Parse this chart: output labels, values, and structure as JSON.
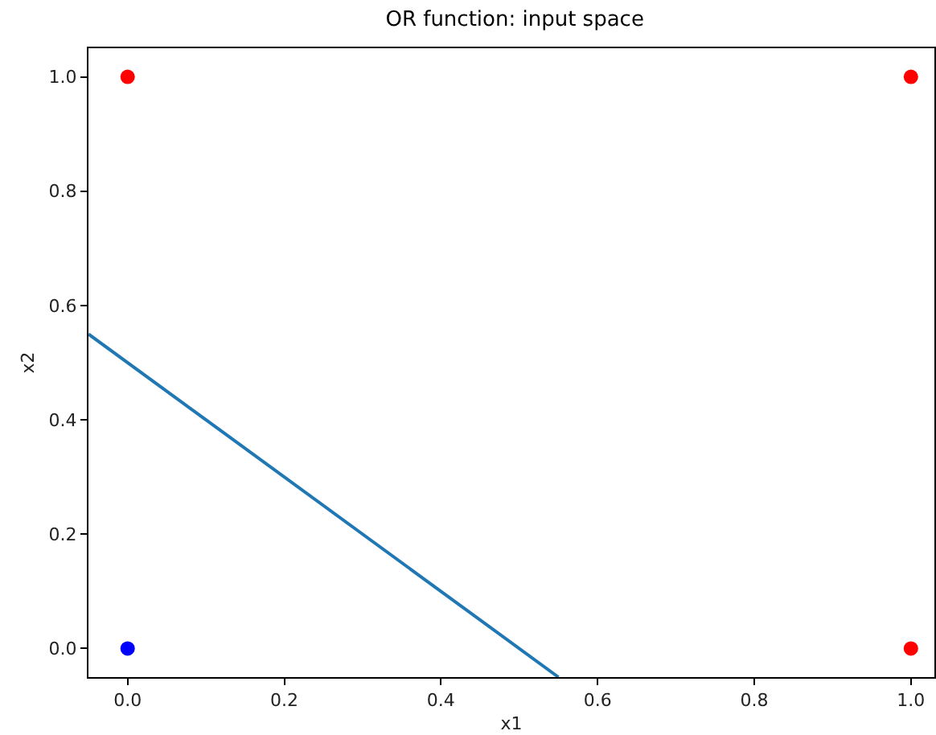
{
  "chart_data": {
    "type": "scatter",
    "title": "OR function: input space",
    "xlabel": "x1",
    "ylabel": "x2",
    "xlim": [
      -0.05,
      1.03
    ],
    "ylim": [
      -0.05,
      1.05
    ],
    "xticks": [
      {
        "value": 0,
        "label": "0.0"
      },
      {
        "value": 0.2,
        "label": "0.2"
      },
      {
        "value": 0.4,
        "label": "0.4"
      },
      {
        "value": 0.6,
        "label": "0.6"
      },
      {
        "value": 0.8,
        "label": "0.8"
      },
      {
        "value": 1,
        "label": "1.0"
      }
    ],
    "yticks": [
      {
        "value": 0,
        "label": "0.0"
      },
      {
        "value": 0.2,
        "label": "0.2"
      },
      {
        "value": 0.4,
        "label": "0.4"
      },
      {
        "value": 0.6,
        "label": "0.6"
      },
      {
        "value": 0.8,
        "label": "0.8"
      },
      {
        "value": 1,
        "label": "1.0"
      }
    ],
    "series": [
      {
        "color": "#ff0000",
        "marker": "circle",
        "x": [
          0,
          1,
          1
        ],
        "values": [
          1,
          1,
          0
        ]
      },
      {
        "color": "#0000ff",
        "marker": "circle",
        "x": [
          0
        ],
        "values": [
          0
        ]
      },
      {
        "type": "line",
        "color": "#1f77b4",
        "x": [
          -0.05,
          0.55
        ],
        "values": [
          0.55,
          -0.05
        ]
      }
    ]
  }
}
